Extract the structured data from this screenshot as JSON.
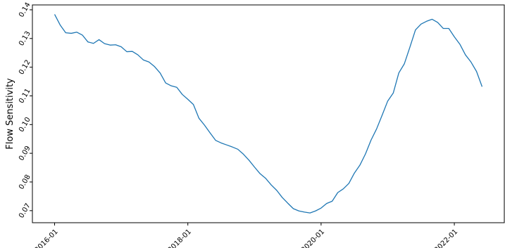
{
  "chart_data": {
    "type": "line",
    "title": "",
    "xlabel": "",
    "ylabel": "Flow Sensitivity",
    "x_ticks": [
      "2016-01",
      "2018-01",
      "2020-01",
      "2022-01"
    ],
    "y_ticks": [
      "0.07",
      "0.08",
      "0.09",
      "0.10",
      "0.11",
      "0.12",
      "0.13",
      "0.14"
    ],
    "ylim": [
      0.0658,
      0.1417
    ],
    "xlim": [
      "2015-09",
      "2022-10"
    ],
    "grid": false,
    "legend": "none",
    "series": [
      {
        "color": "#1f77b4",
        "x": [
          "2016-01",
          "2016-02",
          "2016-03",
          "2016-04",
          "2016-05",
          "2016-06",
          "2016-07",
          "2016-08",
          "2016-09",
          "2016-10",
          "2016-11",
          "2016-12",
          "2017-01",
          "2017-02",
          "2017-03",
          "2017-04",
          "2017-05",
          "2017-06",
          "2017-07",
          "2017-08",
          "2017-09",
          "2017-10",
          "2017-11",
          "2017-12",
          "2018-01",
          "2018-02",
          "2018-03",
          "2018-04",
          "2018-05",
          "2018-06",
          "2018-07",
          "2018-08",
          "2018-09",
          "2018-10",
          "2018-11",
          "2018-12",
          "2019-01",
          "2019-02",
          "2019-03",
          "2019-04",
          "2019-05",
          "2019-06",
          "2019-07",
          "2019-08",
          "2019-09",
          "2019-10",
          "2019-11",
          "2019-12",
          "2020-01",
          "2020-02",
          "2020-03",
          "2020-04",
          "2020-05",
          "2020-06",
          "2020-07",
          "2020-08",
          "2020-09",
          "2020-10",
          "2020-11",
          "2020-12",
          "2021-01",
          "2021-02",
          "2021-03",
          "2021-04",
          "2021-05",
          "2021-06",
          "2021-07",
          "2021-08",
          "2021-09",
          "2021-10",
          "2021-11",
          "2021-12",
          "2022-01",
          "2022-02",
          "2022-03",
          "2022-04",
          "2022-05",
          "2022-06"
        ],
        "y": [
          0.1384,
          0.1347,
          0.132,
          0.1318,
          0.1322,
          0.1312,
          0.1288,
          0.1283,
          0.1296,
          0.1282,
          0.1277,
          0.1278,
          0.1271,
          0.1254,
          0.1255,
          0.1243,
          0.1225,
          0.1218,
          0.1202,
          0.118,
          0.1145,
          0.1135,
          0.113,
          0.1105,
          0.1088,
          0.107,
          0.1022,
          0.0998,
          0.0971,
          0.0945,
          0.0936,
          0.0929,
          0.0922,
          0.0914,
          0.0897,
          0.0876,
          0.0852,
          0.0829,
          0.0813,
          0.079,
          0.0771,
          0.0746,
          0.0726,
          0.0707,
          0.0699,
          0.0695,
          0.0692,
          0.0699,
          0.0709,
          0.0725,
          0.0733,
          0.0763,
          0.0776,
          0.0795,
          0.0831,
          0.0859,
          0.0898,
          0.0946,
          0.0985,
          0.1033,
          0.1082,
          0.111,
          0.118,
          0.1212,
          0.127,
          0.133,
          0.135,
          0.136,
          0.1367,
          0.1356,
          0.1335,
          0.1335,
          0.1306,
          0.128,
          0.1243,
          0.1218,
          0.1185,
          0.1132
        ]
      }
    ]
  }
}
